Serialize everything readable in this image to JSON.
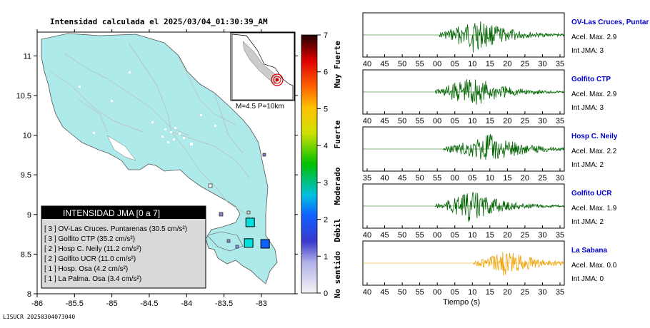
{
  "title": "Intensidad calculada el 2025/03/04_01:30:39_AM",
  "footer_id": "LISUCR 20250304073040",
  "map": {
    "lat_ticks": [
      "11",
      "10.5",
      "10",
      "9.5",
      "9",
      "8.5",
      "8"
    ],
    "lon_ticks": [
      "-86",
      "-85.5",
      "-85",
      "-84.5",
      "-84",
      "-83.5",
      "-83"
    ],
    "inset_label": "M=4.5 P=10km",
    "land_color": "#aeeaea",
    "legend": {
      "header": "INTENSIDAD JMA [0 a 7]",
      "rows": [
        {
          "text": "[ 3 ]  OV-Las Cruces. Puntarenas (30.5 cm/s²)"
        },
        {
          "text": "[ 3 ]  Golfito CTP (35.2 cm/s²)"
        },
        {
          "text": "[ 2 ]  Hosp C. Neily (11.2 cm/s²)"
        },
        {
          "text": "[ 2 ]  Golfito UCR (11.0 cm/s²)"
        },
        {
          "text": "[ 1 ]  Hosp. Osa (4.2 cm/s²)"
        },
        {
          "text": "[ 1 ]  La Palma. Osa (3.4 cm/s²)"
        }
      ]
    },
    "stations": [
      {
        "lon": -83.15,
        "lat": 8.9,
        "int": 3
      },
      {
        "lon": -83.17,
        "lat": 8.64,
        "int": 3
      },
      {
        "lon": -82.95,
        "lat": 8.63,
        "int": 2
      }
    ]
  },
  "colorbar": {
    "ticks": [
      "0",
      "1",
      "2",
      "3",
      "4",
      "5",
      "6",
      "7"
    ],
    "labels": [
      "No sentido",
      "Débil",
      "Moderado",
      "Fuerte",
      "Muy Fuerte"
    ]
  },
  "chart_data": {
    "type": "line",
    "xlabel": "Tiempo (s)",
    "traces": [
      {
        "name": "OV-Las Cruces, Puntar",
        "acel_label": "Acel. Max. 2.9",
        "int_label": "Int JMA: 3",
        "tick_labels": [
          "40",
          "45",
          "50",
          "55",
          "00",
          "05",
          "10",
          "15",
          "20",
          "25",
          "30",
          "35"
        ],
        "color": "#006400",
        "onset": 0.0,
        "peak": 0.05,
        "amp": 1.0
      },
      {
        "name": "Golfito CTP",
        "acel_label": "Acel. Max. 2.9",
        "int_label": "Int JMA: 3",
        "tick_labels": [
          "40",
          "45",
          "50",
          "55",
          "00",
          "05",
          "10",
          "15",
          "20",
          "25",
          "30",
          "35"
        ],
        "color": "#006400",
        "onset": -0.02,
        "peak": 0.03,
        "amp": 1.0
      },
      {
        "name": "Hosp C. Neily",
        "acel_label": "Acel. Max. 2.2",
        "int_label": "Int JMA: 2",
        "tick_labels": [
          "35",
          "40",
          "45",
          "50",
          "55",
          "00",
          "05",
          "10",
          "15",
          "20",
          "25",
          "30"
        ],
        "color": "#006400",
        "onset": 0.02,
        "peak": 0.12,
        "amp": 0.9
      },
      {
        "name": "Golfito UCR",
        "acel_label": "Acel. Max. 1.9",
        "int_label": "Int JMA: 2",
        "tick_labels": [
          "40",
          "45",
          "50",
          "55",
          "00",
          "05",
          "10",
          "15",
          "20",
          "25",
          "30",
          "35"
        ],
        "color": "#006400",
        "onset": -0.02,
        "peak": 0.03,
        "amp": 0.9
      },
      {
        "name": "La Sabana",
        "acel_label": "Acel. Max. 0.0",
        "int_label": "Int JMA: 0",
        "tick_labels": [
          "40",
          "45",
          "50",
          "55",
          "00",
          "05",
          "10",
          "15",
          "20",
          "25",
          "30",
          "35"
        ],
        "color": "#f0a000",
        "onset": 0.17,
        "peak": 0.2,
        "amp": 0.75
      }
    ]
  }
}
